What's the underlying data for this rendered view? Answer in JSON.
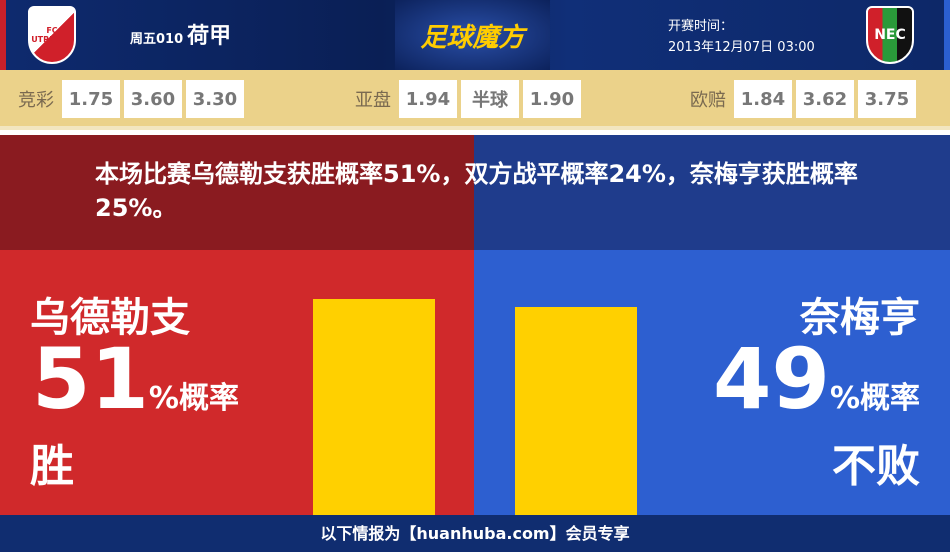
{
  "header": {
    "home_logo_text": "FC UTRECHT",
    "match_no": "周五010",
    "league": "荷甲",
    "brand": "足球魔方",
    "kickoff_label": "开赛时间：",
    "kickoff_time": "2013年12月07日 03:00",
    "away_logo_text": "NEC"
  },
  "odds": {
    "jingcai": {
      "label": "竞彩",
      "values": [
        "1.75",
        "3.60",
        "3.30"
      ]
    },
    "yapan": {
      "label": "亚盘",
      "values": [
        "1.94",
        "半球",
        "1.90"
      ]
    },
    "ouzhi": {
      "label": "欧赔",
      "values": [
        "1.84",
        "3.62",
        "3.75"
      ]
    }
  },
  "summary": "本场比赛乌德勒支获胜概率51%，双方战平概率24%，奈梅亨获胜概率25%。",
  "home": {
    "name": "乌德勒支",
    "percent": "51",
    "unit": "%概率",
    "result": "胜",
    "bar_value": 51
  },
  "away": {
    "name": "奈梅亨",
    "percent": "49",
    "unit": "%概率",
    "result": "不败",
    "bar_value": 49
  },
  "colors": {
    "home": "#d0292b",
    "away": "#2d5fd0",
    "bar": "#ffd000"
  },
  "footer": "以下情报为【huanhuba.com】会员专享"
}
